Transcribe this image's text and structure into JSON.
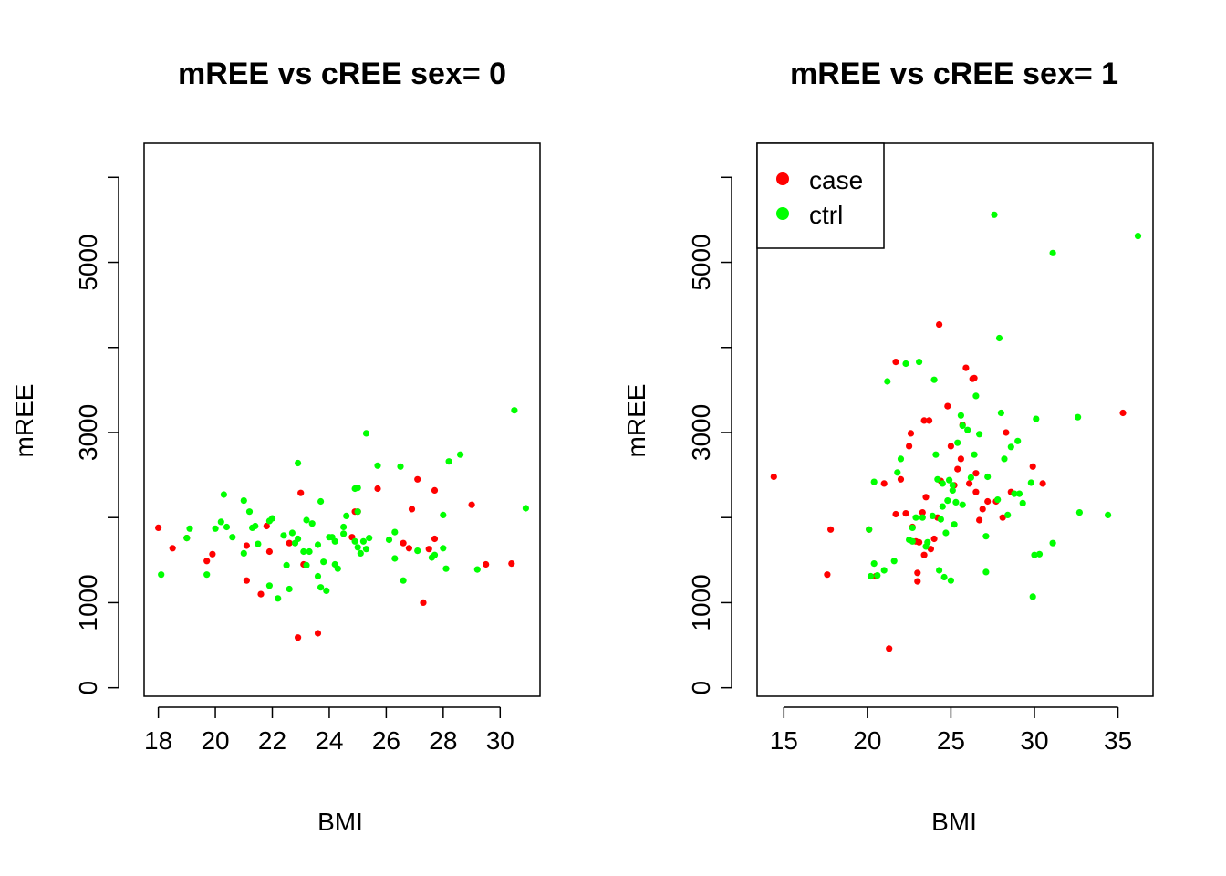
{
  "colors": {
    "case": "#ff0000",
    "ctrl": "#00ff00",
    "axis": "#000000",
    "background": "#ffffff"
  },
  "legend": {
    "placement": "top-left",
    "entries": [
      {
        "label": "case",
        "color": "#ff0000"
      },
      {
        "label": "ctrl",
        "color": "#00ff00"
      }
    ]
  },
  "chart_data": [
    {
      "type": "scatter",
      "title": "mREE vs cREE sex= 0",
      "xlabel": "BMI",
      "ylabel": "mREE",
      "xlim": [
        17.5,
        31.4
      ],
      "ylim": [
        -100,
        6400
      ],
      "xticks": [
        18,
        20,
        22,
        24,
        26,
        28,
        30
      ],
      "yticks": [
        0,
        1000,
        2000,
        3000,
        4000,
        5000,
        6000
      ],
      "ytick_labels": [
        "0",
        "1000",
        "",
        "3000",
        "",
        "5000",
        ""
      ],
      "legend": false,
      "series": [
        {
          "name": "case",
          "color": "#ff0000",
          "points": [
            [
              18.0,
              1880
            ],
            [
              18.5,
              1640
            ],
            [
              19.0,
              1760
            ],
            [
              19.7,
              1490
            ],
            [
              19.9,
              1570
            ],
            [
              21.1,
              1670
            ],
            [
              21.1,
              1260
            ],
            [
              21.6,
              1100
            ],
            [
              21.8,
              1900
            ],
            [
              21.9,
              1600
            ],
            [
              22.6,
              1700
            ],
            [
              22.9,
              590
            ],
            [
              23.0,
              2290
            ],
            [
              23.1,
              1450
            ],
            [
              23.6,
              640
            ],
            [
              24.8,
              1770
            ],
            [
              24.9,
              2070
            ],
            [
              25.0,
              2070
            ],
            [
              25.7,
              2340
            ],
            [
              26.6,
              1700
            ],
            [
              26.8,
              1640
            ],
            [
              26.9,
              2100
            ],
            [
              27.1,
              2450
            ],
            [
              27.3,
              1000
            ],
            [
              27.5,
              1630
            ],
            [
              27.7,
              2320
            ],
            [
              27.7,
              1750
            ],
            [
              29.0,
              2150
            ],
            [
              29.5,
              1450
            ],
            [
              30.4,
              1460
            ]
          ]
        },
        {
          "name": "ctrl",
          "color": "#00ff00",
          "points": [
            [
              18.1,
              1330
            ],
            [
              19.0,
              1760
            ],
            [
              19.1,
              1870
            ],
            [
              19.7,
              1330
            ],
            [
              20.0,
              1870
            ],
            [
              20.2,
              1950
            ],
            [
              20.3,
              2270
            ],
            [
              20.4,
              1890
            ],
            [
              20.6,
              1770
            ],
            [
              21.0,
              2200
            ],
            [
              21.0,
              1580
            ],
            [
              21.2,
              2070
            ],
            [
              21.3,
              1880
            ],
            [
              21.4,
              1900
            ],
            [
              21.5,
              1690
            ],
            [
              21.9,
              1200
            ],
            [
              21.9,
              1960
            ],
            [
              22.0,
              1990
            ],
            [
              22.2,
              1050
            ],
            [
              22.4,
              1790
            ],
            [
              22.5,
              1440
            ],
            [
              22.6,
              1160
            ],
            [
              22.7,
              1820
            ],
            [
              22.8,
              1700
            ],
            [
              22.9,
              1750
            ],
            [
              22.9,
              2640
            ],
            [
              23.1,
              1600
            ],
            [
              23.2,
              1970
            ],
            [
              23.2,
              1440
            ],
            [
              23.3,
              1600
            ],
            [
              23.4,
              1930
            ],
            [
              23.6,
              1680
            ],
            [
              23.6,
              1310
            ],
            [
              23.7,
              1180
            ],
            [
              23.7,
              2190
            ],
            [
              23.8,
              1480
            ],
            [
              23.9,
              1140
            ],
            [
              24.0,
              1770
            ],
            [
              24.1,
              1770
            ],
            [
              24.2,
              1720
            ],
            [
              24.2,
              1450
            ],
            [
              24.3,
              1400
            ],
            [
              24.5,
              1890
            ],
            [
              24.5,
              1810
            ],
            [
              24.9,
              1720
            ],
            [
              25.0,
              1650
            ],
            [
              25.1,
              1580
            ],
            [
              25.2,
              1720
            ],
            [
              25.3,
              2990
            ],
            [
              25.3,
              1630
            ],
            [
              25.4,
              1760
            ],
            [
              25.7,
              2610
            ],
            [
              26.1,
              1740
            ],
            [
              26.3,
              1830
            ],
            [
              26.3,
              1520
            ],
            [
              26.5,
              2600
            ],
            [
              26.6,
              1260
            ],
            [
              27.1,
              1610
            ],
            [
              27.6,
              1530
            ],
            [
              27.7,
              1560
            ],
            [
              28.0,
              1640
            ],
            [
              28.0,
              2030
            ],
            [
              28.1,
              1400
            ],
            [
              28.2,
              2660
            ],
            [
              28.6,
              2740
            ],
            [
              29.2,
              1390
            ],
            [
              30.5,
              3260
            ],
            [
              30.9,
              2110
            ],
            [
              24.9,
              2340
            ],
            [
              25.0,
              2350
            ],
            [
              24.6,
              2020
            ],
            [
              25.0,
              2070
            ]
          ]
        }
      ]
    },
    {
      "type": "scatter",
      "title": "mREE vs cREE sex= 1",
      "xlabel": "BMI",
      "ylabel": "mREE",
      "xlim": [
        13.4,
        37.1
      ],
      "ylim": [
        -100,
        6400
      ],
      "xticks": [
        15,
        20,
        25,
        30,
        35
      ],
      "yticks": [
        0,
        1000,
        2000,
        3000,
        4000,
        5000,
        6000
      ],
      "ytick_labels": [
        "0",
        "1000",
        "",
        "3000",
        "",
        "5000",
        ""
      ],
      "legend": true,
      "series": [
        {
          "name": "case",
          "color": "#ff0000",
          "points": [
            [
              14.4,
              2480
            ],
            [
              17.6,
              1330
            ],
            [
              17.8,
              1860
            ],
            [
              20.1,
              1860
            ],
            [
              20.5,
              1310
            ],
            [
              21.0,
              2400
            ],
            [
              21.3,
              460
            ],
            [
              21.7,
              2040
            ],
            [
              21.7,
              3830
            ],
            [
              22.0,
              2450
            ],
            [
              22.3,
              2050
            ],
            [
              22.5,
              2840
            ],
            [
              22.6,
              2990
            ],
            [
              22.7,
              1890
            ],
            [
              22.9,
              1720
            ],
            [
              23.0,
              1350
            ],
            [
              23.0,
              1250
            ],
            [
              23.1,
              1710
            ],
            [
              23.3,
              2060
            ],
            [
              23.4,
              1560
            ],
            [
              23.4,
              3140
            ],
            [
              23.5,
              2240
            ],
            [
              23.7,
              3140
            ],
            [
              23.8,
              1630
            ],
            [
              24.0,
              1750
            ],
            [
              24.2,
              2000
            ],
            [
              24.3,
              4270
            ],
            [
              24.4,
              2430
            ],
            [
              24.8,
              3310
            ],
            [
              25.0,
              2840
            ],
            [
              25.2,
              2380
            ],
            [
              25.4,
              2570
            ],
            [
              25.6,
              2690
            ],
            [
              25.7,
              3090
            ],
            [
              25.9,
              3760
            ],
            [
              26.1,
              2400
            ],
            [
              26.3,
              3630
            ],
            [
              26.4,
              3640
            ],
            [
              26.5,
              2300
            ],
            [
              26.5,
              2520
            ],
            [
              26.7,
              1970
            ],
            [
              26.9,
              2100
            ],
            [
              27.2,
              2190
            ],
            [
              27.7,
              2190
            ],
            [
              28.1,
              2000
            ],
            [
              28.3,
              3000
            ],
            [
              28.6,
              2300
            ],
            [
              29.9,
              2600
            ],
            [
              30.5,
              2400
            ],
            [
              35.3,
              3230
            ]
          ]
        },
        {
          "name": "ctrl",
          "color": "#00ff00",
          "points": [
            [
              20.1,
              1860
            ],
            [
              20.2,
              1310
            ],
            [
              20.4,
              2420
            ],
            [
              20.4,
              1460
            ],
            [
              20.6,
              1320
            ],
            [
              21.0,
              1380
            ],
            [
              21.2,
              3600
            ],
            [
              21.6,
              1490
            ],
            [
              21.8,
              2530
            ],
            [
              22.0,
              2690
            ],
            [
              22.3,
              3810
            ],
            [
              22.5,
              1740
            ],
            [
              22.7,
              1720
            ],
            [
              22.7,
              1880
            ],
            [
              22.9,
              2000
            ],
            [
              23.1,
              3830
            ],
            [
              23.3,
              2000
            ],
            [
              23.5,
              1660
            ],
            [
              23.6,
              1710
            ],
            [
              23.9,
              2020
            ],
            [
              24.0,
              3620
            ],
            [
              24.1,
              2740
            ],
            [
              24.2,
              2450
            ],
            [
              24.3,
              1380
            ],
            [
              24.4,
              1980
            ],
            [
              24.5,
              2130
            ],
            [
              24.6,
              1300
            ],
            [
              24.7,
              1820
            ],
            [
              24.8,
              2200
            ],
            [
              24.9,
              2440
            ],
            [
              25.0,
              1260
            ],
            [
              25.1,
              2380
            ],
            [
              25.1,
              2320
            ],
            [
              25.2,
              1920
            ],
            [
              25.3,
              2180
            ],
            [
              25.4,
              2880
            ],
            [
              25.6,
              3200
            ],
            [
              25.7,
              3080
            ],
            [
              25.7,
              2150
            ],
            [
              26.0,
              3030
            ],
            [
              26.2,
              2470
            ],
            [
              26.4,
              2740
            ],
            [
              26.5,
              3430
            ],
            [
              26.7,
              2980
            ],
            [
              27.1,
              1360
            ],
            [
              27.1,
              1780
            ],
            [
              27.2,
              2480
            ],
            [
              27.6,
              5560
            ],
            [
              27.8,
              2210
            ],
            [
              27.9,
              4110
            ],
            [
              28.0,
              3230
            ],
            [
              28.2,
              2690
            ],
            [
              28.4,
              2030
            ],
            [
              28.6,
              2830
            ],
            [
              28.8,
              2280
            ],
            [
              29.0,
              2900
            ],
            [
              29.1,
              2280
            ],
            [
              29.3,
              2170
            ],
            [
              29.8,
              2410
            ],
            [
              29.9,
              1070
            ],
            [
              30.0,
              1560
            ],
            [
              30.1,
              3160
            ],
            [
              30.3,
              1570
            ],
            [
              31.1,
              5110
            ],
            [
              31.1,
              1700
            ],
            [
              32.6,
              3180
            ],
            [
              32.7,
              2060
            ],
            [
              34.4,
              2030
            ],
            [
              36.2,
              5310
            ],
            [
              24.5,
              2400
            ]
          ]
        }
      ]
    }
  ]
}
